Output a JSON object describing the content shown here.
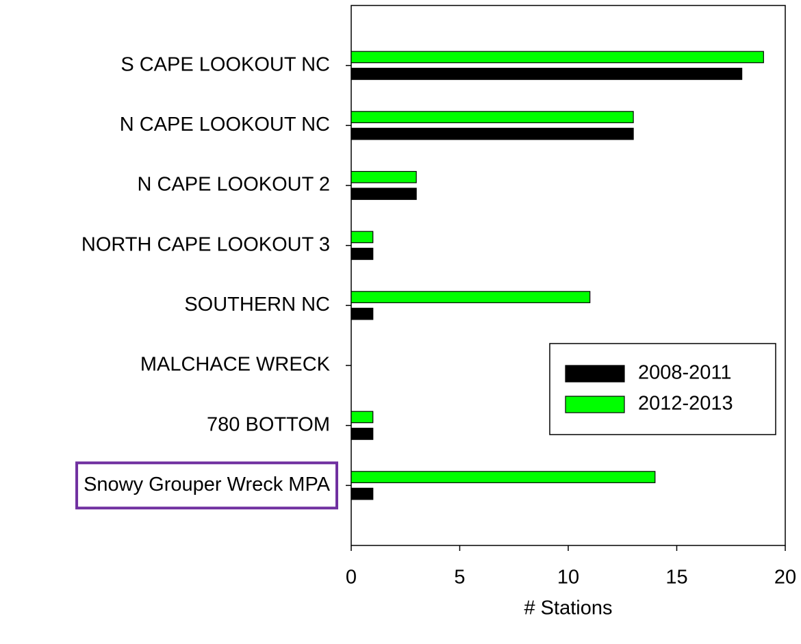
{
  "chart_data": {
    "type": "bar",
    "orientation": "horizontal",
    "x_label": "# Stations",
    "categories": [
      "S CAPE LOOKOUT NC",
      "N CAPE LOOKOUT NC",
      "N CAPE LOOKOUT 2",
      "NORTH CAPE LOOKOUT 3",
      "SOUTHERN NC",
      "MALCHACE WRECK",
      "780 BOTTOM",
      "Snowy Grouper Wreck MPA"
    ],
    "series": [
      {
        "name": "2008-2011",
        "color": "#000000",
        "values": [
          18,
          13,
          3,
          1,
          1,
          0,
          1,
          1
        ]
      },
      {
        "name": "2012-2013",
        "color": "#00ff00",
        "values": [
          19,
          13,
          3,
          1,
          11,
          0,
          1,
          14
        ]
      }
    ],
    "xlim": [
      0,
      20
    ],
    "xticks": [
      0,
      5,
      10,
      15,
      20
    ],
    "legend": "lower right",
    "highlight_color": "#7030a0"
  }
}
